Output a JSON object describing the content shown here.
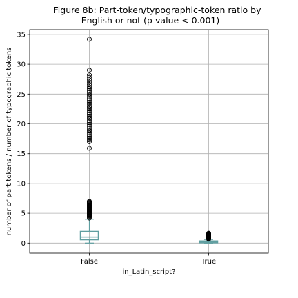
{
  "chart_data": {
    "type": "boxplot",
    "title_lines": [
      "Figure 8b: Part-token/typographic-token ratio by",
      "English or not (p-value < 0.001)"
    ],
    "xlabel": "in_Latin_script?",
    "ylabel": "number of part tokens / number of typographic tokens",
    "categories": [
      "False",
      "True"
    ],
    "ylim": [
      -1.7,
      35.8
    ],
    "yticks": [
      0,
      5,
      10,
      15,
      20,
      25,
      30,
      35
    ],
    "grid": true,
    "box_color": "#5f9ea0",
    "boxes": [
      {
        "category": "False",
        "q1": 0.55,
        "median": 1.0,
        "q3": 1.95,
        "whisker_low": 0.0,
        "whisker_high": 4.0,
        "outliers": [
          4.2,
          4.35,
          4.5,
          4.6,
          4.7,
          4.8,
          4.9,
          5.0,
          5.1,
          5.2,
          5.3,
          5.4,
          5.5,
          5.6,
          5.7,
          5.8,
          5.9,
          6.0,
          6.1,
          6.2,
          6.3,
          6.4,
          6.5,
          6.6,
          6.7,
          6.8,
          6.9,
          7.0,
          15.9,
          17.0,
          17.3,
          17.6,
          17.9,
          18.2,
          18.5,
          18.8,
          19.0,
          19.3,
          19.6,
          19.9,
          20.2,
          20.5,
          20.8,
          21.0,
          21.3,
          21.6,
          21.9,
          22.2,
          22.5,
          22.8,
          23.0,
          23.3,
          23.6,
          23.9,
          24.2,
          24.5,
          24.8,
          25.0,
          25.3,
          25.6,
          25.9,
          26.2,
          26.6,
          27.0,
          27.4,
          27.8,
          28.2,
          29.0,
          34.2
        ]
      },
      {
        "category": "True",
        "q1": 0.05,
        "median": 0.2,
        "q3": 0.35,
        "whisker_low": 0.0,
        "whisker_high": 0.6,
        "outliers": [
          0.65,
          0.7,
          0.75,
          0.8,
          0.85,
          0.9,
          0.95,
          1.0,
          1.05,
          1.1,
          1.15,
          1.2,
          1.25,
          1.3,
          1.35,
          1.4,
          1.45,
          1.5,
          1.55,
          1.6,
          1.65
        ]
      }
    ]
  }
}
